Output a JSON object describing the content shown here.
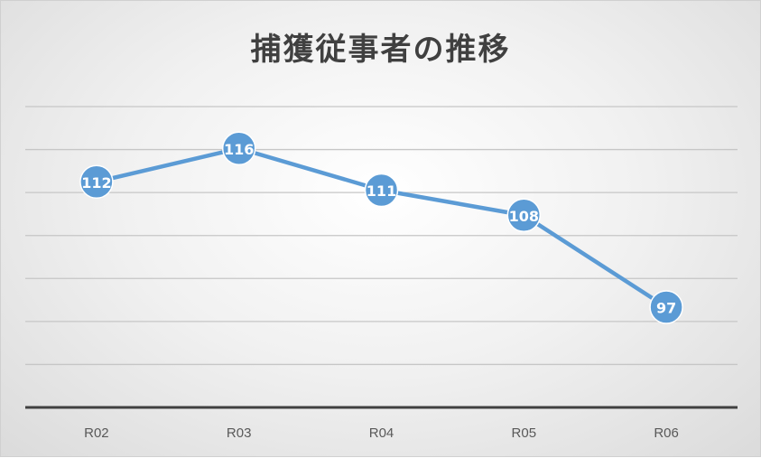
{
  "chart_data": {
    "type": "line",
    "title": "捕獲従事者の推移",
    "categories": [
      "R02",
      "R03",
      "R04",
      "R05",
      "R06"
    ],
    "series": [
      {
        "values": [
          112,
          116,
          111,
          108,
          97
        ],
        "color": "#5b9bd5"
      }
    ],
    "xlabel": "",
    "ylabel": "",
    "ylim": [
      85,
      121
    ],
    "grid": true,
    "legend": "none",
    "data_labels": true
  }
}
